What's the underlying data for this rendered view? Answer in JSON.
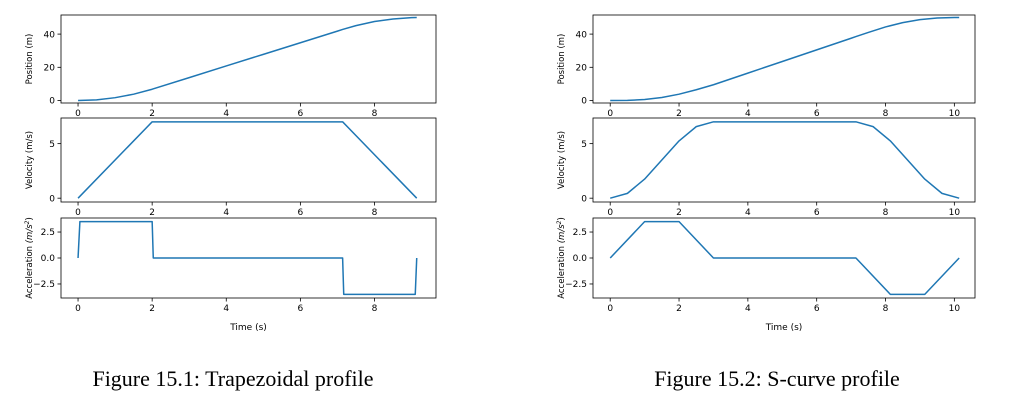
{
  "figures": [
    {
      "caption": "Figure 15.1: Trapezoidal profile",
      "chart_data": {
        "type": "line",
        "xlabel": "Time (s)",
        "xlim": [
          -0.46,
          9.66
        ],
        "xticks": [
          0,
          2,
          4,
          6,
          8
        ],
        "subplots": [
          {
            "ylabel": "Position (m)",
            "ylim": [
              -1.5,
              51.5
            ],
            "yticks": [
              0,
              20,
              40
            ],
            "series": [
              {
                "x": [
                  0,
                  0.5,
                  1,
                  1.5,
                  2,
                  3,
                  4,
                  5,
                  6,
                  7,
                  7.14,
                  7.5,
                  8,
                  8.5,
                  9,
                  9.14
                ],
                "y": [
                  0,
                  0.4,
                  1.7,
                  3.8,
                  6.8,
                  13.8,
                  20.8,
                  27.8,
                  34.8,
                  41.8,
                  42.8,
                  45.1,
                  47.6,
                  49.1,
                  49.9,
                  50
                ]
              }
            ]
          },
          {
            "ylabel": "Velocity (m/s)",
            "ylim": [
              -0.35,
              7.35
            ],
            "yticks": [
              0,
              5
            ],
            "series": [
              {
                "x": [
                  0,
                  2,
                  7.14,
                  9.14
                ],
                "y": [
                  0,
                  7,
                  7,
                  0
                ]
              }
            ]
          },
          {
            "ylabel": "Acceleration $(m/s^2)$",
            "ylabel_main": "Acceleration ",
            "ylabel_math": "(m/s",
            "ylabel_exp": "2",
            "ylabel_close": ")",
            "ylim": [
              -3.85,
              3.85
            ],
            "yticks": [
              2.5,
              0.0,
              -2.5
            ],
            "yticklabels": [
              "2.5",
              "0.0",
              "−2.5"
            ],
            "series": [
              {
                "x": [
                  0,
                  0.05,
                  2,
                  2.03,
                  7.14,
                  7.17,
                  9.1,
                  9.14
                ],
                "y": [
                  0,
                  3.5,
                  3.5,
                  0,
                  0,
                  -3.5,
                  -3.5,
                  0
                ]
              }
            ]
          }
        ]
      }
    },
    {
      "caption": "Figure 15.2: S-curve profile",
      "chart_data": {
        "type": "line",
        "xlabel": "Time (s)",
        "xlim": [
          -0.5,
          10.6
        ],
        "xticks": [
          0,
          2,
          4,
          6,
          8,
          10
        ],
        "subplots": [
          {
            "ylabel": "Position (m)",
            "ylim": [
              -1.5,
              51.5
            ],
            "yticks": [
              0,
              20,
              40
            ],
            "series": [
              {
                "x": [
                  0,
                  0.5,
                  1,
                  1.5,
                  2,
                  2.5,
                  3,
                  4,
                  5,
                  6,
                  7,
                  7.14,
                  7.5,
                  8,
                  8.5,
                  9,
                  9.5,
                  10,
                  10.14
                ],
                "y": [
                  0,
                  0.07,
                  0.58,
                  1.8,
                  3.8,
                  6.5,
                  9.5,
                  16.5,
                  23.5,
                  30.5,
                  37.5,
                  38.5,
                  41,
                  44.3,
                  46.9,
                  48.7,
                  49.7,
                  50,
                  50
                ]
              }
            ]
          },
          {
            "ylabel": "Velocity (m/s)",
            "ylim": [
              -0.35,
              7.35
            ],
            "yticks": [
              0,
              5
            ],
            "series": [
              {
                "x": [
                  0,
                  0.5,
                  1,
                  1.5,
                  2,
                  2.5,
                  3,
                  7.14,
                  7.64,
                  8.14,
                  8.64,
                  9.14,
                  9.64,
                  10.14
                ],
                "y": [
                  0,
                  0.44,
                  1.75,
                  3.5,
                  5.25,
                  6.56,
                  7,
                  7,
                  6.56,
                  5.25,
                  3.5,
                  1.75,
                  0.44,
                  0
                ]
              }
            ]
          },
          {
            "ylabel": "Acceleration $(m/s^2)$",
            "ylabel_main": "Acceleration ",
            "ylabel_math": "(m/s",
            "ylabel_exp": "2",
            "ylabel_close": ")",
            "ylim": [
              -3.85,
              3.85
            ],
            "yticks": [
              2.5,
              0.0,
              -2.5
            ],
            "yticklabels": [
              "2.5",
              "0.0",
              "−2.5"
            ],
            "series": [
              {
                "x": [
                  0,
                  1,
                  2,
                  3,
                  7.14,
                  8.14,
                  9.14,
                  10.14
                ],
                "y": [
                  0,
                  3.5,
                  3.5,
                  0,
                  0,
                  -3.5,
                  -3.5,
                  0
                ]
              }
            ]
          }
        ]
      }
    }
  ],
  "colors": {
    "line": "#1f77b4",
    "axes": "#000000"
  }
}
